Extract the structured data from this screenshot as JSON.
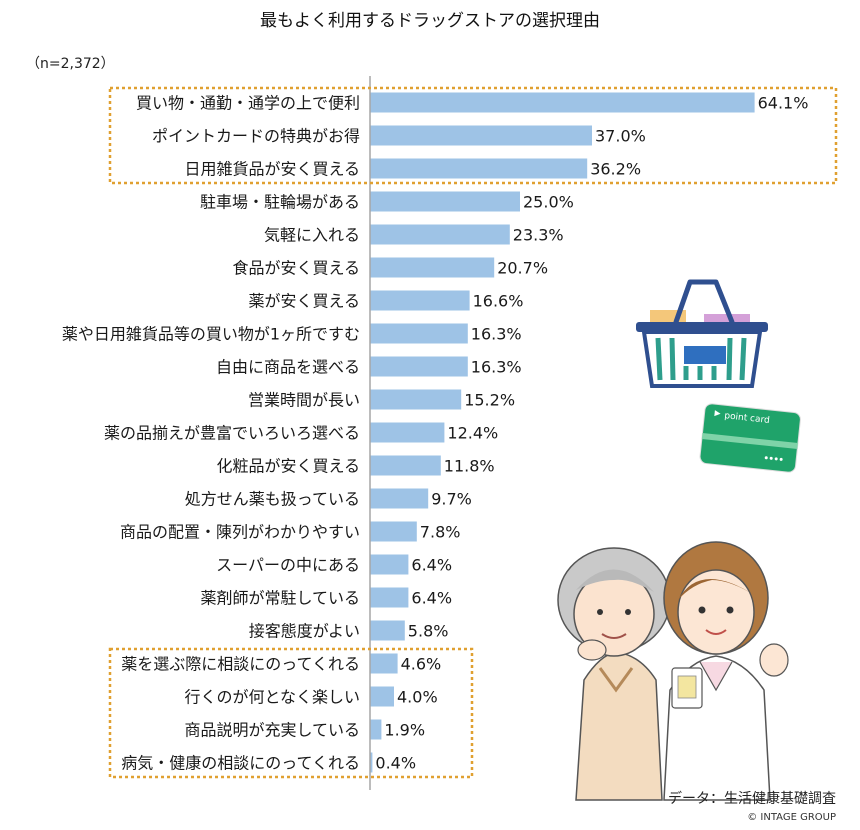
{
  "chart_data": {
    "type": "bar",
    "orientation": "horizontal",
    "title": "最もよく利用するドラッグストアの選択理由",
    "sample_note": "（n=2,372）",
    "categories": [
      "買い物・通勤・通学の上で便利",
      "ポイントカードの特典がお得",
      "日用雑貨品が安く買える",
      "駐車場・駐輪場がある",
      "気軽に入れる",
      "食品が安く買える",
      "薬が安く買える",
      "薬や日用雑貨品等の買い物が1ヶ所ですむ",
      "自由に商品を選べる",
      "営業時間が長い",
      "薬の品揃えが豊富でいろいろ選べる",
      "化粧品が安く買える",
      "処方せん薬も扱っている",
      "商品の配置・陳列がわかりやすい",
      "スーパーの中にある",
      "薬剤師が常駐している",
      "接客態度がよい",
      "薬を選ぶ際に相談にのってくれる",
      "行くのが何となく楽しい",
      "商品説明が充実している",
      "病気・健康の相談にのってくれる"
    ],
    "values": [
      64.1,
      37.0,
      36.2,
      25.0,
      23.3,
      20.7,
      16.6,
      16.3,
      16.3,
      15.2,
      12.4,
      11.8,
      9.7,
      7.8,
      6.4,
      6.4,
      5.8,
      4.6,
      4.0,
      1.9,
      0.4
    ],
    "value_labels": [
      "64.1%",
      "37.0%",
      "36.2%",
      "25.0%",
      "23.3%",
      "20.7%",
      "16.6%",
      "16.3%",
      "16.3%",
      "15.2%",
      "12.4%",
      "11.8%",
      "9.7%",
      "7.8%",
      "6.4%",
      "6.4%",
      "5.8%",
      "4.6%",
      "4.0%",
      "1.9%",
      "0.4%"
    ],
    "xlim": [
      0,
      70
    ],
    "highlight_groups": [
      {
        "name": "top-three",
        "from_index": 0,
        "to_index": 2
      },
      {
        "name": "bottom-four",
        "from_index": 17,
        "to_index": 20
      }
    ],
    "source": "データ：生活健康基礎調査",
    "credit": "© INTAGE GROUP"
  },
  "illustrations": {
    "card_text": "point card"
  },
  "colors": {
    "bar": "#9ec3e6",
    "axis": "#a6a6a6",
    "highlight_border": "#e0a030",
    "basket": "#2f4f8f",
    "basket_inner": "#2e9e8c",
    "card": "#1fa36a"
  }
}
